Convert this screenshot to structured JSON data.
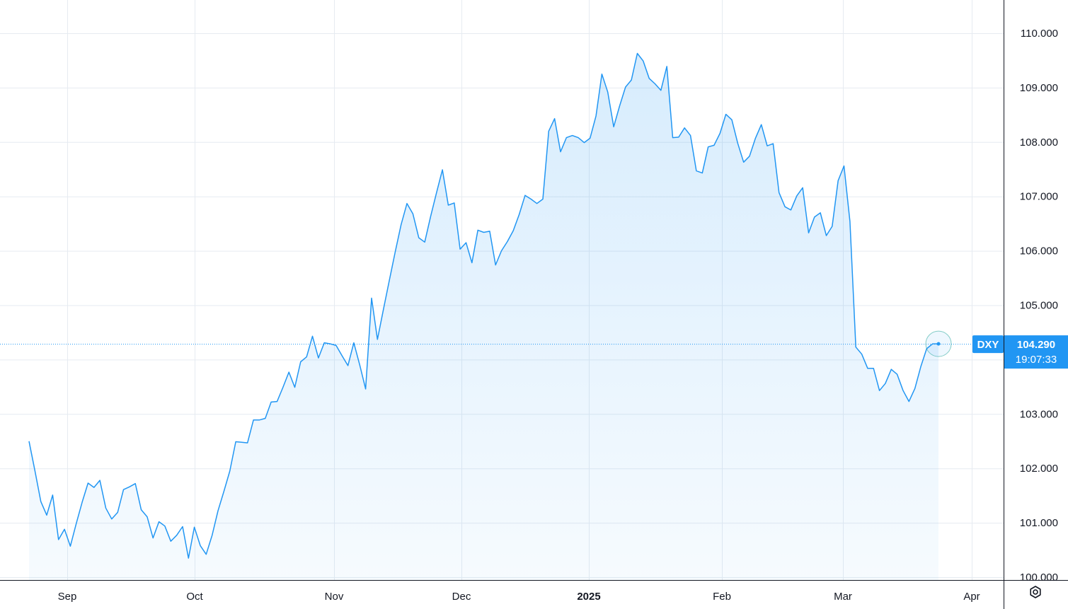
{
  "chart_data": {
    "type": "area",
    "symbol": "DXY",
    "last_value": "104.290",
    "last_value_num": 104.29,
    "countdown": "19:07:33",
    "x_labels": [
      "Sep",
      "Oct",
      "Nov",
      "Dec",
      "2025",
      "Feb",
      "Mar",
      "Apr"
    ],
    "y_ticks": [
      "100.000",
      "101.000",
      "102.000",
      "103.000",
      "104.000",
      "105.000",
      "106.000",
      "107.000",
      "108.000",
      "109.000",
      "110.000"
    ],
    "ylim": [
      100,
      110
    ],
    "grid": true,
    "x_start": "2024-08-23",
    "x_end": "2025-03-24",
    "values": [
      102.5,
      101.96,
      101.39,
      101.14,
      101.51,
      100.69,
      100.88,
      100.57,
      100.99,
      101.38,
      101.73,
      101.65,
      101.78,
      101.27,
      101.07,
      101.19,
      101.61,
      101.66,
      101.72,
      101.24,
      101.11,
      100.72,
      101.02,
      100.94,
      100.66,
      100.77,
      100.93,
      100.35,
      100.92,
      100.58,
      100.42,
      100.77,
      101.22,
      101.58,
      101.95,
      102.49,
      102.48,
      102.47,
      102.89,
      102.89,
      102.92,
      103.22,
      103.23,
      103.49,
      103.77,
      103.49,
      103.96,
      104.05,
      104.43,
      104.03,
      104.31,
      104.29,
      104.26,
      104.07,
      103.89,
      104.31,
      103.9,
      103.46,
      105.13,
      104.37,
      104.92,
      105.45,
      105.98,
      106.48,
      106.87,
      106.68,
      106.24,
      106.16,
      106.63,
      107.07,
      107.49,
      106.84,
      106.88,
      106.03,
      106.15,
      105.78,
      106.38,
      106.34,
      106.36,
      105.74,
      106.0,
      106.17,
      106.37,
      106.67,
      107.02,
      106.95,
      106.87,
      106.95,
      108.2,
      108.43,
      107.82,
      108.08,
      108.12,
      108.08,
      107.99,
      108.07,
      108.48,
      109.25,
      108.92,
      108.28,
      108.66,
      109.01,
      109.14,
      109.63,
      109.49,
      109.17,
      109.07,
      108.95,
      109.39,
      108.08,
      108.09,
      108.26,
      108.12,
      107.47,
      107.43,
      107.91,
      107.94,
      108.16,
      108.51,
      108.41,
      107.98,
      107.63,
      107.74,
      108.07,
      108.32,
      107.93,
      107.97,
      107.07,
      106.81,
      106.75,
      107.01,
      107.16,
      106.33,
      106.62,
      106.7,
      106.28,
      106.45,
      107.29,
      107.56,
      106.54,
      104.23,
      104.1,
      103.84,
      103.84,
      103.43,
      103.56,
      103.82,
      103.73,
      103.43,
      103.23,
      103.47,
      103.87,
      104.2,
      104.29,
      104.29
    ]
  },
  "colors": {
    "line": "#2196f3",
    "badge": "#2196f3",
    "grid": "#e6ebf1",
    "text": "#131722"
  },
  "settings_icon": "settings-gear-icon"
}
